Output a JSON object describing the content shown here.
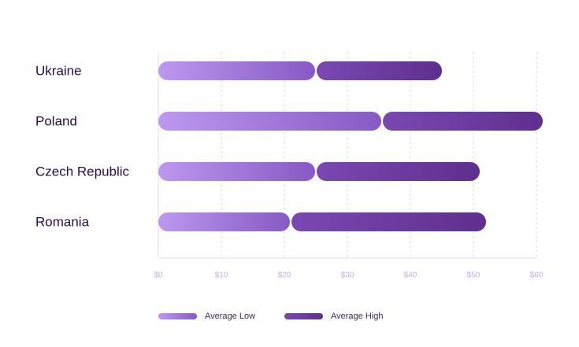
{
  "chart_data": {
    "type": "bar",
    "orientation": "horizontal",
    "stacked": true,
    "categories": [
      "Ukraine",
      "Poland",
      "Czech Republic",
      "Romania"
    ],
    "series": [
      {
        "name": "Average Low",
        "values": [
          25,
          35.5,
          25,
          21
        ],
        "color": "#a27be3"
      },
      {
        "name": "Average High",
        "values": [
          20,
          25.5,
          26,
          31
        ],
        "color": "#6a3a9c"
      }
    ],
    "x_ticks": [
      "$0",
      "$10",
      "$20",
      "$30",
      "$40",
      "$50",
      "$60"
    ],
    "xlim": [
      0,
      60
    ],
    "grid": true,
    "legend": "bottom",
    "colors": {
      "low_start": "#bc98f0",
      "low_end": "#8759c4",
      "high_start": "#7a48b2",
      "high_end": "#5f2f8e",
      "category_text": "#2a0b4f",
      "tick_text": "#c4aef0"
    }
  }
}
